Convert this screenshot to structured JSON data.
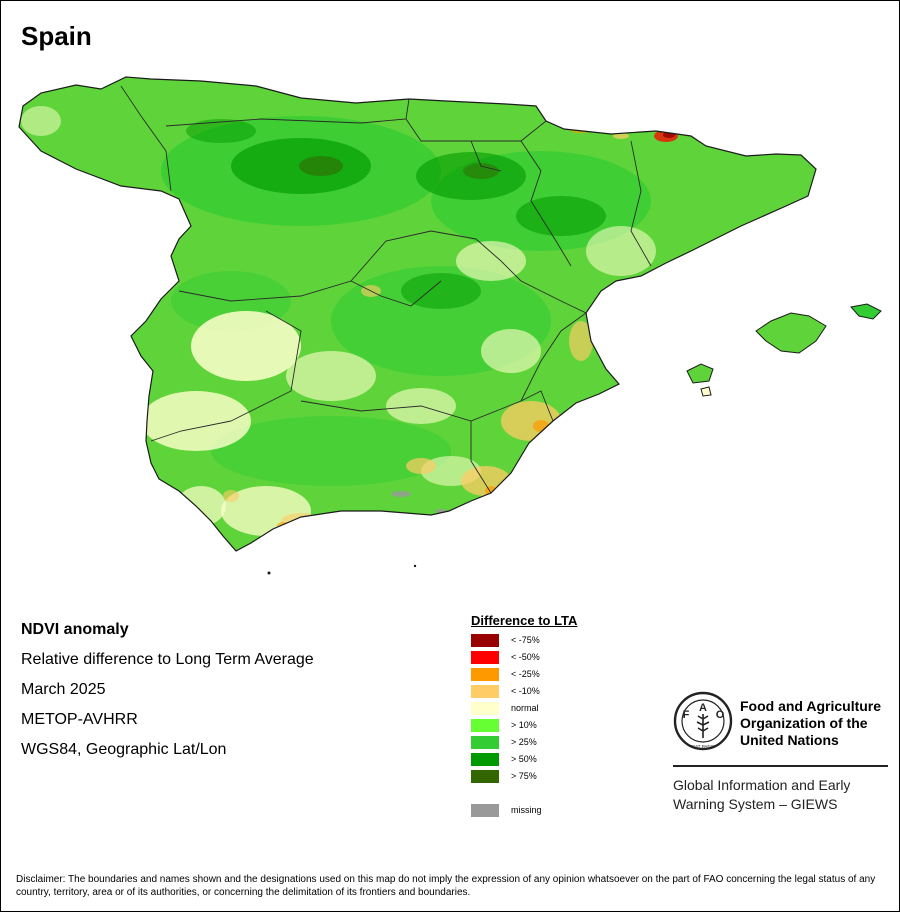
{
  "map": {
    "title": "Spain",
    "colors": {
      "background": "#ffffff",
      "land_base": "#5fd43a",
      "border_line": "#2a2a2a",
      "coastline": "#1a1a1a"
    }
  },
  "info": {
    "lines": [
      "NDVI anomaly",
      "Relative difference to Long Term Average",
      "March 2025",
      "METOP-AVHRR",
      "WGS84, Geographic Lat/Lon"
    ]
  },
  "legend": {
    "title": "Difference to LTA",
    "items": [
      {
        "label": "< -75%",
        "color": "#990000"
      },
      {
        "label": "< -50%",
        "color": "#ff0000"
      },
      {
        "label": "< -25%",
        "color": "#ff9900"
      },
      {
        "label": "< -10%",
        "color": "#ffcc66"
      },
      {
        "label": "normal",
        "color": "#ffffcc"
      },
      {
        "label": "> 10%",
        "color": "#66ff33"
      },
      {
        "label": "> 25%",
        "color": "#33cc33"
      },
      {
        "label": "> 50%",
        "color": "#009900"
      },
      {
        "label": "> 75%",
        "color": "#336600"
      }
    ],
    "missing": {
      "label": "missing",
      "color": "#999999"
    }
  },
  "org": {
    "logo_icon": "fao-logo-icon",
    "logo_letters": [
      "F",
      "A",
      "O"
    ],
    "logo_motto": "FIAT PANIS",
    "name_lines": [
      "Food and Agriculture",
      "Organization of the",
      "United Nations"
    ],
    "system_lines": [
      "Global Information and Early",
      "Warning System – GIEWS"
    ]
  },
  "disclaimer": "Disclaimer: The boundaries and names shown and the designations used on this map do not imply the expression of any opinion whatsoever on the part of FAO concerning the legal status of any country, territory, area or of its authorities, or concerning the delimitation of its frontiers and boundaries."
}
